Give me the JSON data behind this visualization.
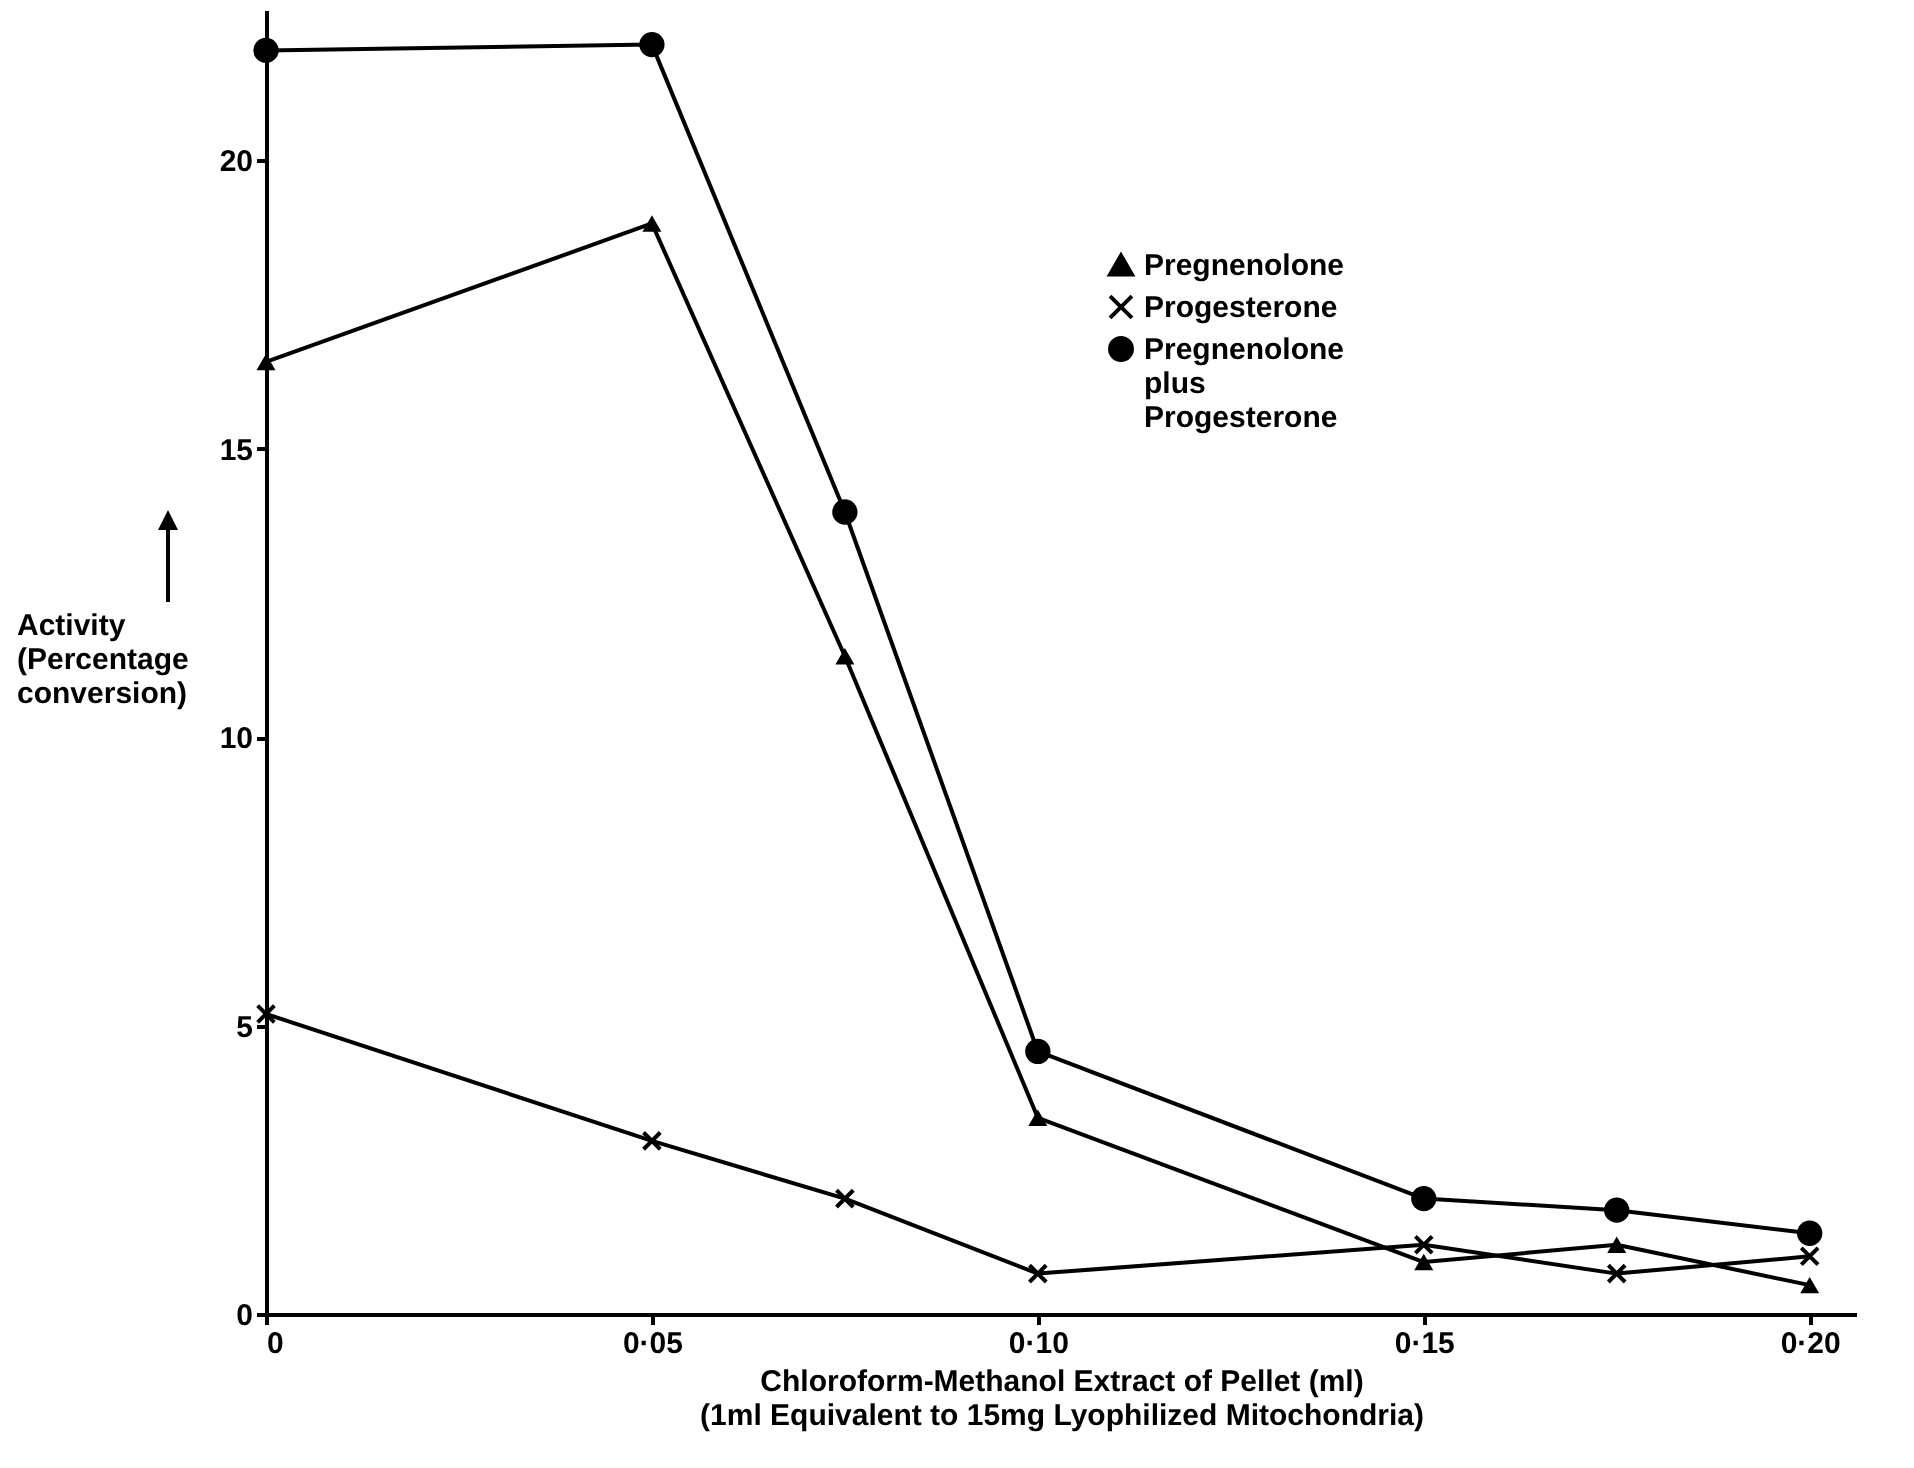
{
  "chart_data": {
    "type": "line",
    "xlabel": "Chloroform-Methanol Extract of Pellet (ml)\n(1ml Equivalent to 15mg Lyophilized Mitochondria)",
    "ylabel": "Activity\n(Percentage\nconversion)",
    "categories": [
      "0",
      null,
      "0·05",
      null,
      "0·10",
      null,
      "0·15",
      null,
      "0·20"
    ],
    "series": [
      {
        "name": "Pregnenolone",
        "color": "#000000",
        "marker": "triangle",
        "values": [
          16.5,
          null,
          18.9,
          11.4,
          3.4,
          null,
          0.9,
          1.2,
          0.5
        ]
      },
      {
        "name": "Progesterone",
        "color": "#000000",
        "marker": "cross",
        "values": [
          5.2,
          null,
          3.0,
          2.0,
          0.7,
          null,
          1.2,
          0.7,
          1.0
        ]
      },
      {
        "name": "Pregnenolone plus Progesterone",
        "color": "#000000",
        "marker": "circle",
        "values": [
          21.9,
          null,
          22.0,
          13.9,
          4.55,
          null,
          2.0,
          1.8,
          1.4
        ]
      }
    ],
    "ylim": [
      0,
      22.6
    ],
    "yticks": [
      0,
      5,
      10,
      15,
      20
    ],
    "grid": false,
    "legend": "top right",
    "line_style": "solid"
  }
}
